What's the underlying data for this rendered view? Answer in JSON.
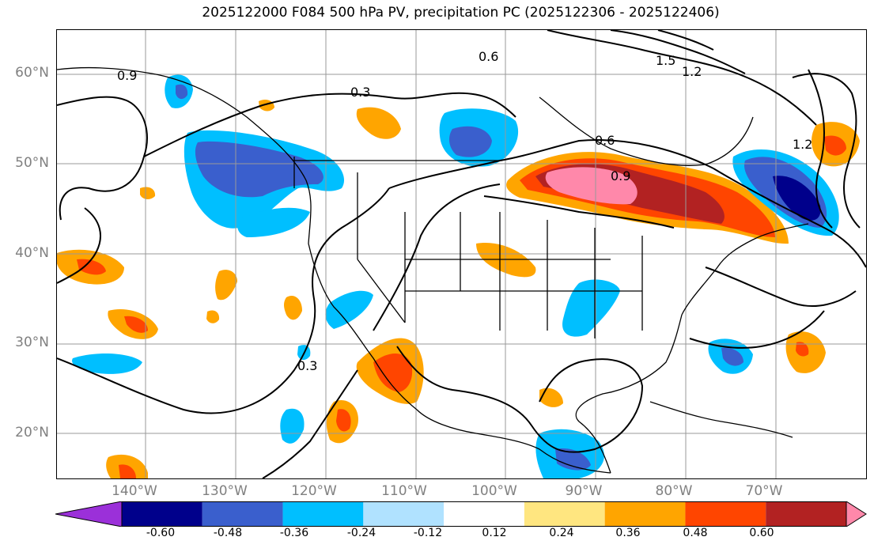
{
  "title": "2025122000 F084 500 hPa PV, precipitation PC (2025122306 - 2025122406)",
  "lat_labels": [
    "60°N",
    "50°N",
    "40°N",
    "30°N",
    "20°N"
  ],
  "lon_labels": [
    "140°W",
    "130°W",
    "120°W",
    "110°W",
    "100°W",
    "90°W",
    "80°W",
    "70°W"
  ],
  "contour_labels": [
    "0.9",
    "0.3",
    "0.6",
    "0.6",
    "1.5",
    "1.2",
    "0.9",
    "0.3",
    "1.2"
  ],
  "colorbar": {
    "labels": [
      "-0.60",
      "-0.48",
      "-0.36",
      "-0.24",
      "-0.12",
      "0.12",
      "0.24",
      "0.36",
      "0.48",
      "0.60"
    ],
    "colors": [
      "#9b30d9",
      "#00008b",
      "#3a5fcd",
      "#00bfff",
      "#b0e2ff",
      "#ffffff",
      "#ffe680",
      "#ffa500",
      "#ff4500",
      "#b22222",
      "#ff88aa"
    ]
  }
}
